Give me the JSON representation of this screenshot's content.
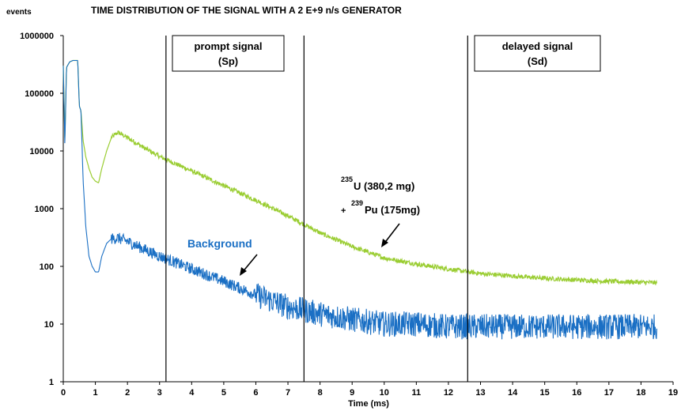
{
  "chart_data": {
    "type": "line",
    "title": "TIME DISTRIBUTION OF THE SIGNAL WITH A 2 E+9 n/s GENERATOR",
    "ylabel": "events",
    "xlabel": "Time (ms)",
    "xlim": [
      0,
      19
    ],
    "ylim": [
      1,
      1000000
    ],
    "yscale": "log",
    "x_ticks": [
      "0",
      "1",
      "2",
      "3",
      "4",
      "5",
      "6",
      "7",
      "8",
      "9",
      "10",
      "11",
      "12",
      "13",
      "14",
      "15",
      "16",
      "17",
      "18",
      "19"
    ],
    "y_ticks": [
      "1",
      "10",
      "100",
      "1000",
      "10000",
      "100000",
      "1000000"
    ],
    "grid": false,
    "series": [
      {
        "name": "235U (380,2 mg) + 239Pu (175mg)",
        "color": "#9acd32",
        "x": [
          0.0,
          0.05,
          0.1,
          0.2,
          0.3,
          0.45,
          0.5,
          0.55,
          0.62,
          0.7,
          0.8,
          0.9,
          1.0,
          1.1,
          1.2,
          1.35,
          1.5,
          1.7,
          2.0,
          2.5,
          3.0,
          4.0,
          5.0,
          6.0,
          7.0,
          8.0,
          9.0,
          10.0,
          11.0,
          12.0,
          13.0,
          14.0,
          15.0,
          16.0,
          17.0,
          18.0,
          18.5
        ],
        "y": [
          300000,
          15000,
          280000,
          350000,
          370000,
          370000,
          60000,
          50000,
          15000,
          8000,
          5000,
          3500,
          3000,
          2800,
          5000,
          10000,
          17000,
          21000,
          17000,
          11500,
          8000,
          4500,
          2500,
          1400,
          750,
          380,
          220,
          140,
          110,
          90,
          75,
          68,
          62,
          58,
          55,
          53,
          52
        ]
      },
      {
        "name": "Background",
        "color": "#1a6fc4",
        "x": [
          0.0,
          0.05,
          0.1,
          0.2,
          0.3,
          0.45,
          0.5,
          0.55,
          0.62,
          0.7,
          0.8,
          0.9,
          1.0,
          1.1,
          1.2,
          1.35,
          1.5,
          1.7,
          2.0,
          2.5,
          3.0,
          4.0,
          5.0,
          6.0,
          7.0,
          8.0,
          9.0,
          10.0,
          11.0,
          12.0,
          13.0,
          14.0,
          15.0,
          16.0,
          17.0,
          18.0,
          18.5
        ],
        "y": [
          300000,
          12000,
          280000,
          350000,
          370000,
          370000,
          60000,
          50000,
          3000,
          500,
          150,
          100,
          80,
          80,
          150,
          250,
          300,
          310,
          270,
          200,
          150,
          90,
          55,
          32,
          20,
          15,
          12,
          10,
          10,
          9,
          9,
          9,
          9,
          9,
          9,
          9,
          9
        ]
      }
    ],
    "vertical_lines": [
      3.2,
      7.5,
      12.6
    ],
    "regions": [
      {
        "label_line1": "prompt signal",
        "label_line2": "(Sp)"
      },
      {
        "label_line1": "delayed signal",
        "label_line2": "(Sd)"
      }
    ],
    "annotations": {
      "u235_sup": "235",
      "u235_text": "U (380,2 mg)",
      "pu239_plus": "+",
      "pu239_sup": "239",
      "pu239_text": "Pu (175mg)",
      "background_label": "Background"
    }
  }
}
